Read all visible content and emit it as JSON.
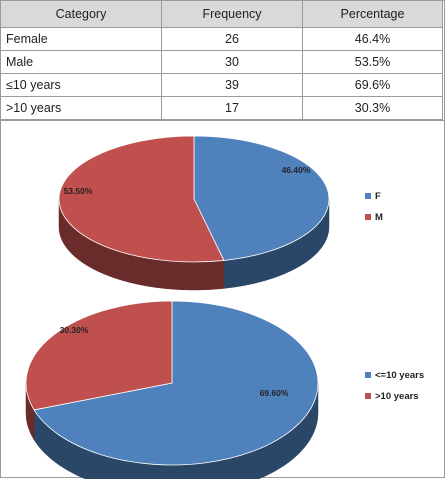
{
  "table": {
    "headers": [
      "Category",
      "Frequency",
      "Percentage"
    ],
    "rows": [
      {
        "category": "Female",
        "frequency": "26",
        "percentage": "46.4%"
      },
      {
        "category": "Male",
        "frequency": "30",
        "percentage": "53.5%"
      },
      {
        "category": "≤10 years",
        "frequency": "39",
        "percentage": "69.6%"
      },
      {
        "category": ">10 years",
        "frequency": "17",
        "percentage": "30.3%"
      }
    ]
  },
  "chart_data": [
    {
      "type": "pie",
      "title": "",
      "labels": [
        "F",
        "M"
      ],
      "values": [
        46.4,
        53.5
      ],
      "data_labels": [
        "46.40%",
        "53.50%"
      ],
      "colors": [
        "#4f81bd",
        "#c0504d"
      ],
      "style": "3d",
      "legend": "right"
    },
    {
      "type": "pie",
      "title": "",
      "labels": [
        "<=10 years",
        ">10 years"
      ],
      "values": [
        69.6,
        30.3
      ],
      "data_labels": [
        "69.60%",
        "30.30%"
      ],
      "colors": [
        "#4f81bd",
        "#c0504d"
      ],
      "style": "3d",
      "legend": "right"
    }
  ]
}
